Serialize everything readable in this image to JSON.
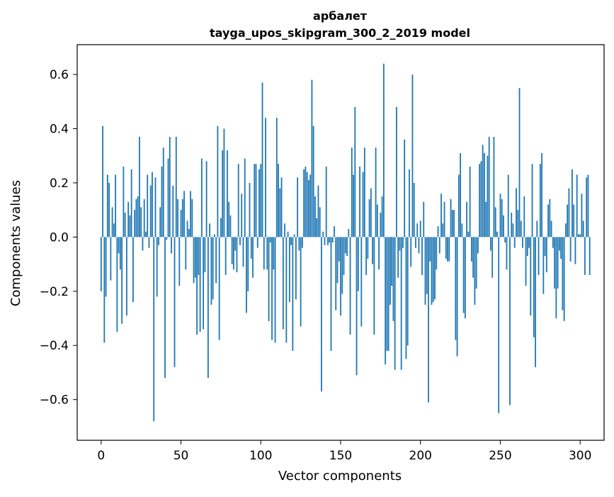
{
  "chart_data": {
    "type": "bar",
    "title": "арбалет",
    "subtitle": "tayga_upos_skipgram_300_2_2019 model",
    "xlabel": "Vector components",
    "ylabel": "Components values",
    "xlim": [
      -15,
      315
    ],
    "ylim": [
      -0.75,
      0.71
    ],
    "xticks": [
      0,
      50,
      100,
      150,
      200,
      250,
      300
    ],
    "yticks": [
      -0.6,
      -0.4,
      -0.2,
      0.0,
      0.2,
      0.4,
      0.6
    ],
    "ytick_labels": [
      "−0.6",
      "−0.4",
      "−0.2",
      "0.0",
      "0.2",
      "0.4",
      "0.6"
    ],
    "bar_color": "#1f77b4",
    "grid": false,
    "values": [
      -0.2,
      0.41,
      -0.39,
      -0.22,
      0.23,
      0.2,
      -0.16,
      0.11,
      0.05,
      0.23,
      -0.35,
      -0.06,
      -0.12,
      -0.32,
      0.26,
      0.09,
      -0.29,
      0.13,
      0.08,
      0.25,
      -0.24,
      0.1,
      0.14,
      0.15,
      0.37,
      0.11,
      -0.05,
      0.14,
      0.02,
      0.23,
      -0.04,
      0.19,
      0.24,
      -0.68,
      0.22,
      -0.22,
      -0.03,
      0.11,
      0.26,
      0.33,
      -0.52,
      -0.01,
      0.29,
      0.37,
      -0.06,
      0.19,
      -0.48,
      0.37,
      0.14,
      -0.18,
      0.1,
      0.14,
      0.17,
      -0.12,
      0.06,
      0.03,
      0.17,
      0.14,
      -0.17,
      -0.15,
      -0.36,
      -0.14,
      -0.35,
      0.29,
      -0.34,
      -0.13,
      0.28,
      -0.52,
      0.05,
      -0.25,
      -0.23,
      0.01,
      -0.17,
      0.41,
      -0.38,
      0.07,
      0.32,
      0.4,
      -0.14,
      0.32,
      0.13,
      0.08,
      -0.1,
      -0.12,
      -0.05,
      -0.13,
      0.27,
      -0.03,
      0.16,
      -0.11,
      0.29,
      -0.28,
      -0.2,
      0.2,
      -0.08,
      -0.15,
      0.27,
      0.27,
      -0.04,
      0.25,
      0.27,
      0.57,
      -0.12,
      0.44,
      -0.12,
      -0.31,
      -0.02,
      -0.38,
      -0.12,
      -0.39,
      0.44,
      0.27,
      0.18,
      0.22,
      -0.34,
      0.05,
      -0.39,
      0.02,
      -0.24,
      -0.03,
      -0.42,
      0.01,
      -0.23,
      0.22,
      -0.05,
      -0.33,
      -0.04,
      0.25,
      0.26,
      0.24,
      0.21,
      0.23,
      0.58,
      0.41,
      0.15,
      0.07,
      0.19,
      0.11,
      -0.57,
      0.02,
      -0.03,
      0.26,
      -0.03,
      -0.02,
      -0.42,
      -0.02,
      0.04,
      -0.27,
      -0.17,
      -0.09,
      -0.29,
      -0.21,
      -0.14,
      -0.06,
      -0.07,
      0.03,
      -0.36,
      0.33,
      0.23,
      0.48,
      -0.51,
      -0.2,
      0.26,
      -0.33,
      0.24,
      0.33,
      -0.14,
      -0.08,
      0.14,
      0.18,
      -0.1,
      -0.36,
      0.33,
      0.12,
      -0.12,
      0.09,
      0.15,
      0.64,
      -0.47,
      -0.42,
      -0.42,
      -0.25,
      -0.18,
      -0.31,
      -0.49,
      0.48,
      -0.15,
      -0.05,
      -0.49,
      -0.04,
      0.36,
      -0.45,
      -0.4,
      0.25,
      -0.11,
      0.6,
      0.2,
      -0.04,
      0.05,
      -0.06,
      0.06,
      -0.14,
      0.13,
      -0.25,
      -0.21,
      -0.61,
      -0.09,
      -0.25,
      -0.24,
      -0.23,
      -0.12,
      0.04,
      -0.06,
      0.16,
      0.05,
      0.13,
      -0.08,
      -0.09,
      -0.09,
      0.14,
      0.1,
      0.1,
      -0.38,
      -0.44,
      0.23,
      0.31,
      0.05,
      -0.28,
      -0.3,
      0.13,
      0.02,
      0.26,
      -0.09,
      -0.15,
      -0.25,
      -0.19,
      -0.06,
      0.27,
      0.28,
      0.34,
      0.31,
      0.13,
      0.3,
      0.37,
      -0.05,
      -0.15,
      0.37,
      0.11,
      0.02,
      -0.65,
      0.16,
      0.14,
      0.08,
      -0.02,
      -0.12,
      0.23,
      -0.62,
      0.09,
      0.05,
      -0.04,
      0.18,
      0.1,
      0.55,
      0.06,
      -0.04,
      0.15,
      -0.18,
      -0.07,
      -0.04,
      -0.29,
      0.27,
      -0.37,
      -0.48,
      0.06,
      -0.14,
      0.27,
      0.31,
      -0.21,
      -0.07,
      -0.13,
      0.12,
      0.14,
      0.06,
      -0.04,
      -0.19,
      -0.3,
      -0.19,
      -0.05,
      -0.08,
      -0.27,
      -0.31,
      0.05,
      0.12,
      0.18,
      -0.09,
      0.25,
      0.12,
      -0.1,
      0.23,
      0.01,
      0.01,
      0.16,
      0.06,
      -0.14,
      0.22,
      0.23,
      -0.14
    ]
  }
}
